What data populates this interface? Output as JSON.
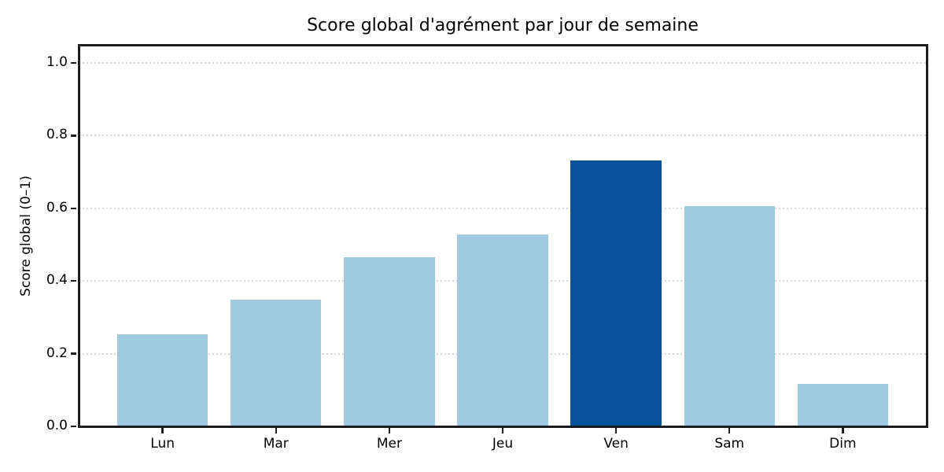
{
  "chart_data": {
    "type": "bar",
    "title": "Score global d'agrément par jour de semaine",
    "xlabel": "",
    "ylabel": "Score global (0–1)",
    "categories": [
      "Lun",
      "Mar",
      "Mer",
      "Jeu",
      "Ven",
      "Sam",
      "Dim"
    ],
    "values": [
      0.253,
      0.348,
      0.465,
      0.528,
      0.731,
      0.607,
      0.116
    ],
    "ylim": [
      0,
      1.05
    ],
    "yticks": [
      0.0,
      0.2,
      0.4,
      0.6,
      0.8,
      1.0
    ],
    "ytick_labels": [
      "0.0",
      "0.2",
      "0.4",
      "0.6",
      "0.8",
      "1.0"
    ],
    "grid": "horizontal dotted gridlines at major y ticks",
    "legend": "none",
    "bar_color": "#9ecae1",
    "highlight_color": "#08519c",
    "highlight_index": 4,
    "highlight_category": "Ven",
    "spine_color": "#1c1c1c",
    "background_color": "#ffffff"
  }
}
